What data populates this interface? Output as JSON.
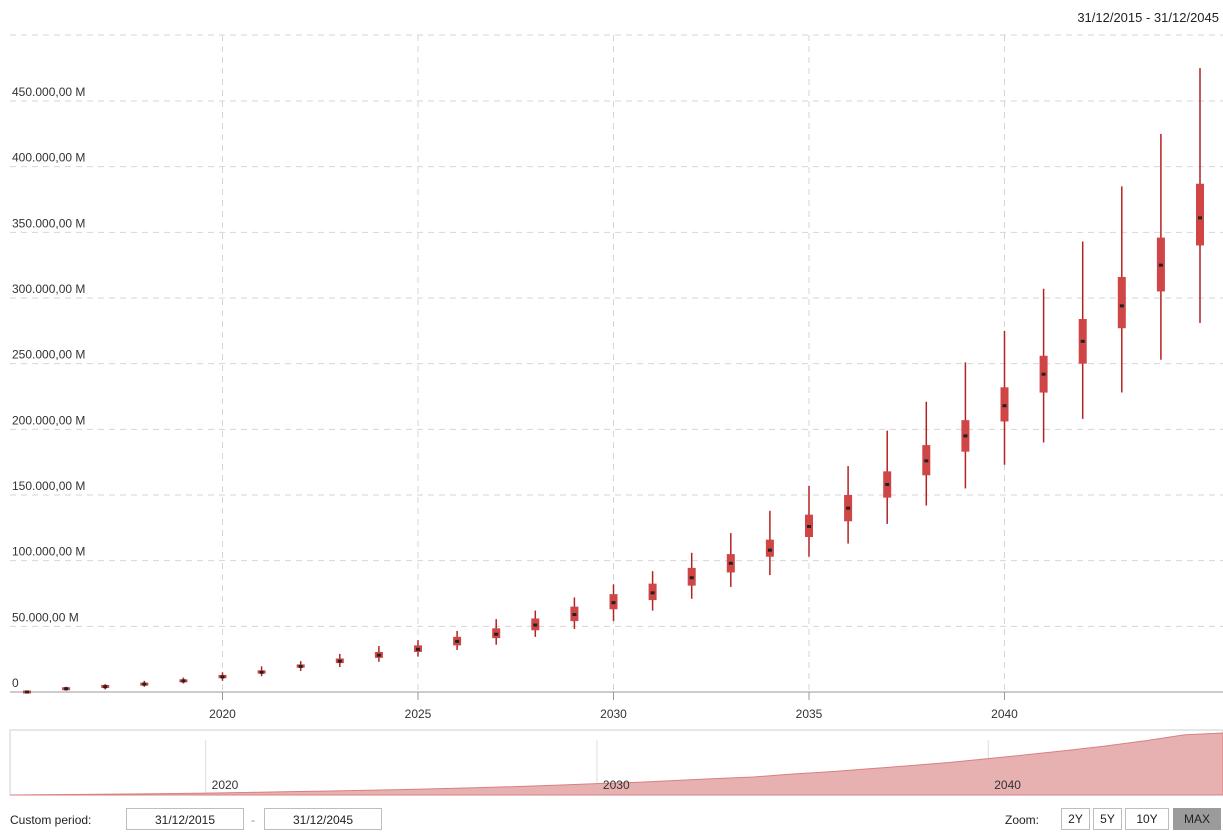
{
  "header": {
    "range": "31/12/2015 - 31/12/2045"
  },
  "colors": {
    "box": "#d04545",
    "whisker": "#b22222",
    "median": "#222222",
    "navigator_fill": "#e7b1b1",
    "navigator_line": "#d98080",
    "grid": "#d6d6d6"
  },
  "chart_data": {
    "type": "boxplot",
    "x": [
      2015,
      2016,
      2017,
      2018,
      2019,
      2020,
      2021,
      2022,
      2023,
      2024,
      2025,
      2026,
      2027,
      2028,
      2029,
      2030,
      2031,
      2032,
      2033,
      2034,
      2035,
      2036,
      2037,
      2038,
      2039,
      2040,
      2041,
      2042,
      2043,
      2044,
      2045
    ],
    "low": [
      0,
      1000,
      2000,
      4000,
      6500,
      8500,
      12000,
      16000,
      19000,
      23000,
      27000,
      32000,
      36000,
      42000,
      48000,
      54000,
      62000,
      71000,
      80000,
      89000,
      103000,
      113000,
      128000,
      142000,
      155000,
      173000,
      190000,
      208000,
      228000,
      253000,
      281000
    ],
    "q1": [
      0,
      2000,
      3500,
      5000,
      7500,
      10500,
      14000,
      18500,
      22000,
      26000,
      30500,
      35500,
      41000,
      47000,
      54000,
      63000,
      70000,
      81000,
      91000,
      103000,
      118000,
      130000,
      148000,
      165000,
      183000,
      206000,
      228000,
      250000,
      277000,
      305000,
      340000
    ],
    "median": [
      0,
      2500,
      4000,
      6000,
      8500,
      11500,
      15000,
      19500,
      23500,
      28000,
      32500,
      38500,
      44000,
      51000,
      59000,
      68000,
      75500,
      87000,
      98000,
      108000,
      126000,
      140000,
      158000,
      176000,
      195000,
      218000,
      242000,
      267000,
      294000,
      325000,
      361000
    ],
    "q3": [
      0,
      3000,
      5000,
      7000,
      9500,
      13000,
      16500,
      21000,
      25500,
      30500,
      35500,
      42000,
      48500,
      56000,
      65000,
      74500,
      82500,
      94500,
      105000,
      116000,
      135000,
      150000,
      168000,
      188000,
      207000,
      232000,
      256000,
      284000,
      316000,
      346000,
      387000
    ],
    "high": [
      0,
      4000,
      6000,
      8500,
      11000,
      15000,
      19500,
      23500,
      29000,
      35000,
      39500,
      46500,
      55500,
      62000,
      72000,
      82000,
      92000,
      106000,
      121000,
      138000,
      157000,
      172000,
      199000,
      221000,
      251000,
      275000,
      307000,
      343000,
      385000,
      425000,
      475000
    ],
    "yticks": [
      "0",
      "50.000,00 M",
      "100.000,00 M",
      "150.000,00 M",
      "200.000,00 M",
      "250.000,00 M",
      "300.000,00 M",
      "350.000,00 M",
      "400.000,00 M",
      "450.000,00 M"
    ],
    "ytick_values": [
      0,
      50000,
      100000,
      150000,
      200000,
      250000,
      300000,
      350000,
      400000,
      450000
    ],
    "xticks": [
      "2020",
      "2025",
      "2030",
      "2035",
      "2040"
    ],
    "xtick_values": [
      2020,
      2025,
      2030,
      2035,
      2040
    ],
    "navigator_ticks": [
      "2020",
      "2030",
      "2040"
    ],
    "navigator_tick_values": [
      2020,
      2030,
      2040
    ],
    "ylim": [
      0,
      480000
    ],
    "xlim": [
      2015,
      2046
    ],
    "grid": true
  },
  "footer": {
    "custom_period_label": "Custom period:",
    "date_from": "31/12/2015",
    "separator": "-",
    "date_to": "31/12/2045",
    "zoom_label": "Zoom:",
    "zoom_options": [
      "2Y",
      "5Y",
      "10Y",
      "MAX"
    ],
    "zoom_active": "MAX"
  }
}
